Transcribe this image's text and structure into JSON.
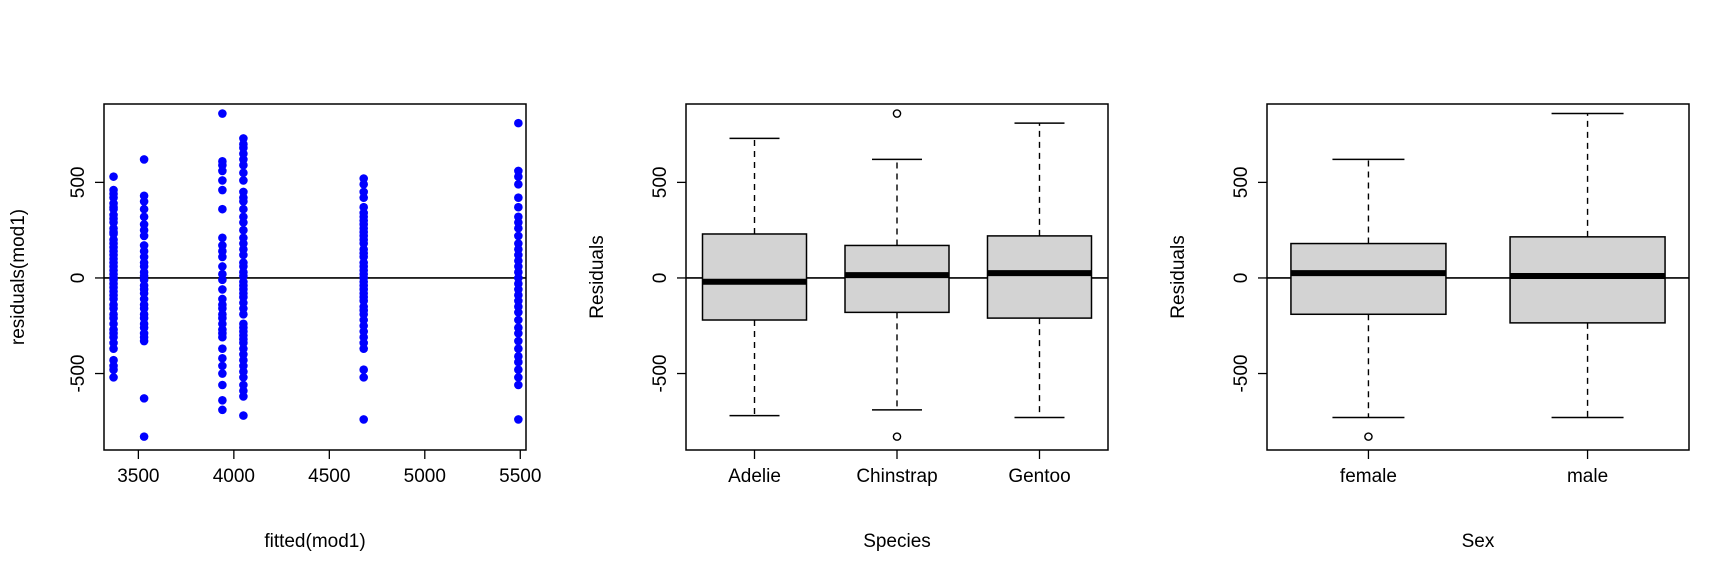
{
  "chart_data": [
    {
      "type": "scatter",
      "xlabel": "fitted(mod1)",
      "ylabel": "residuals(mod1)",
      "xlim": [
        3320,
        5530
      ],
      "ylim": [
        -900,
        910
      ],
      "xticks": [
        3500,
        4000,
        4500,
        5000,
        5500
      ],
      "yticks": [
        -500,
        0,
        500
      ],
      "hline": 0,
      "point_color": "#0000ff",
      "series": [
        {
          "x": 3370,
          "values": [
            530,
            460,
            440,
            420,
            390,
            370,
            360,
            330,
            310,
            290,
            260,
            240,
            230,
            200,
            180,
            160,
            140,
            120,
            100,
            80,
            60,
            40,
            20,
            0,
            -10,
            -30,
            -50,
            -70,
            -90,
            -110,
            -140,
            -160,
            -190,
            -210,
            -240,
            -270,
            -290,
            -310,
            -340,
            -370,
            -430,
            -460,
            -480,
            -520
          ]
        },
        {
          "x": 3530,
          "values": [
            620,
            430,
            400,
            360,
            320,
            280,
            250,
            220,
            170,
            140,
            110,
            80,
            60,
            30,
            10,
            -10,
            -40,
            -60,
            -80,
            -110,
            -140,
            -160,
            -190,
            -210,
            -240,
            -260,
            -290,
            -310,
            -330,
            -630,
            -830
          ]
        },
        {
          "x": 3940,
          "values": [
            860,
            610,
            590,
            560,
            510,
            460,
            360,
            210,
            170,
            140,
            110,
            60,
            20,
            -10,
            -60,
            -110,
            -140,
            -160,
            -190,
            -210,
            -240,
            -270,
            -290,
            -310,
            -370,
            -420,
            -460,
            -500,
            -560,
            -640,
            -690
          ]
        },
        {
          "x": 4050,
          "values": [
            730,
            700,
            680,
            650,
            620,
            590,
            550,
            510,
            450,
            420,
            400,
            360,
            320,
            290,
            250,
            210,
            180,
            150,
            120,
            80,
            60,
            30,
            10,
            -20,
            -40,
            -60,
            -80,
            -100,
            -130,
            -160,
            -190,
            -240,
            -260,
            -280,
            -300,
            -320,
            -340,
            -370,
            -400,
            -430,
            -460,
            -490,
            -520,
            -560,
            -590,
            -620,
            -720
          ]
        },
        {
          "x": 4680,
          "values": [
            520,
            490,
            450,
            420,
            370,
            340,
            320,
            300,
            280,
            260,
            240,
            220,
            200,
            180,
            150,
            130,
            110,
            80,
            60,
            40,
            20,
            0,
            -20,
            -40,
            -60,
            -80,
            -100,
            -120,
            -150,
            -170,
            -190,
            -220,
            -250,
            -280,
            -310,
            -340,
            -370,
            -480,
            -520,
            -740
          ]
        },
        {
          "x": 5490,
          "values": [
            810,
            560,
            530,
            490,
            420,
            370,
            320,
            290,
            260,
            220,
            180,
            150,
            120,
            90,
            60,
            30,
            0,
            -30,
            -60,
            -90,
            -120,
            -150,
            -180,
            -220,
            -260,
            -290,
            -330,
            -370,
            -410,
            -440,
            -480,
            -520,
            -560,
            -740
          ]
        }
      ]
    },
    {
      "type": "boxplot",
      "xlabel": "Species",
      "ylabel": "Residuals",
      "ylim": [
        -900,
        910
      ],
      "yticks": [
        -500,
        0,
        500
      ],
      "hline": 0,
      "box_fill": "#d3d3d3",
      "categories": [
        "Adelie",
        "Chinstrap",
        "Gentoo"
      ],
      "boxes": [
        {
          "min": -720,
          "q1": -220,
          "median": -20,
          "q3": 230,
          "max": 730,
          "outliers": []
        },
        {
          "min": -690,
          "q1": -180,
          "median": 15,
          "q3": 170,
          "max": 620,
          "outliers": [
            860,
            -830
          ]
        },
        {
          "min": -730,
          "q1": -210,
          "median": 25,
          "q3": 220,
          "max": 810,
          "outliers": []
        }
      ]
    },
    {
      "type": "boxplot",
      "xlabel": "Sex",
      "ylabel": "Residuals",
      "ylim": [
        -900,
        910
      ],
      "yticks": [
        -500,
        0,
        500
      ],
      "hline": 0,
      "box_fill": "#d3d3d3",
      "categories": [
        "female",
        "male"
      ],
      "boxes": [
        {
          "min": -730,
          "q1": -190,
          "median": 25,
          "q3": 180,
          "max": 620,
          "outliers": [
            -830
          ]
        },
        {
          "min": -730,
          "q1": -235,
          "median": 10,
          "q3": 215,
          "max": 860,
          "outliers": []
        }
      ]
    }
  ]
}
